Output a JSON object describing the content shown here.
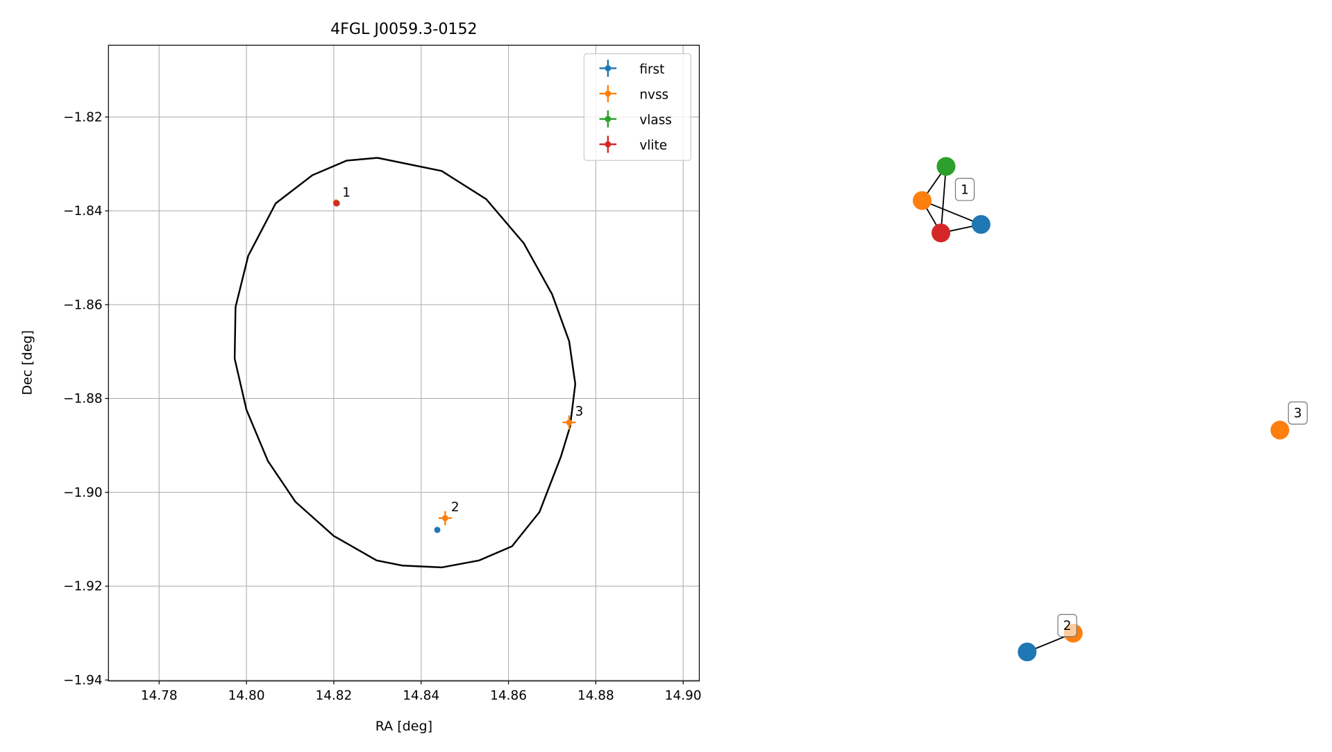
{
  "chart_data": [
    {
      "type": "scatter",
      "title": "4FGL J0059.3-0152",
      "x_label": "RA [deg]",
      "y_label": "Dec [deg]",
      "xlim": [
        14.7684,
        14.9037
      ],
      "ylim": [
        -1.9402,
        -1.8047
      ],
      "xticks": [
        14.78,
        {
          "value": 14.8,
          "label": "14.80"
        },
        14.82,
        14.84,
        14.86,
        14.88,
        {
          "value": 14.9,
          "label": "14.90"
        }
      ],
      "yticks": [
        {
          "value": -1.82,
          "label": "−1.82"
        },
        {
          "value": -1.84,
          "label": "−1.84"
        },
        {
          "value": -1.86,
          "label": "−1.86"
        },
        {
          "value": -1.88,
          "label": "−1.88"
        },
        {
          "value": -1.9,
          "label": "−1.90"
        },
        {
          "value": -1.92,
          "label": "−1.92"
        },
        {
          "value": -1.94,
          "label": "−1.94"
        }
      ],
      "grid": true,
      "legend": "upper right",
      "series": [
        {
          "name": "first",
          "color": "#1f77b4",
          "x": [
            14.8206,
            14.8437
          ],
          "values": [
            -1.8383,
            -1.908
          ]
        },
        {
          "name": "nvss",
          "color": "#ff7f0e",
          "x": [
            14.8205,
            14.8455,
            14.8739
          ],
          "values": [
            -1.8382,
            -1.9055,
            -1.8851
          ],
          "xerr": [
            0.0003,
            0.0015,
            0.0015
          ],
          "yerr": [
            0.0003,
            0.0015,
            0.0015
          ]
        },
        {
          "name": "vlass",
          "color": "#2ca02c",
          "x": [
            14.8207
          ],
          "values": [
            -1.8384
          ]
        },
        {
          "name": "vlite",
          "color": "#d62728",
          "x": [
            14.8206
          ],
          "values": [
            -1.8384
          ]
        }
      ],
      "contour": {
        "color": "#000000",
        "x": [
          14.83,
          14.8447,
          14.8549,
          14.8635,
          14.87,
          14.8739,
          14.8753,
          14.8741,
          14.872,
          14.8671,
          14.8608,
          14.8533,
          14.8447,
          14.8357,
          14.8298,
          14.82,
          14.8112,
          14.8049,
          14.8,
          14.7973,
          14.7975,
          14.8004,
          14.8067,
          14.8151,
          14.8229,
          14.83
        ],
        "values": [
          -1.8287,
          -1.8315,
          -1.8375,
          -1.8469,
          -1.8578,
          -1.8678,
          -1.8769,
          -1.886,
          -1.8924,
          -1.9042,
          -1.9115,
          -1.9145,
          -1.916,
          -1.9156,
          -1.9145,
          -1.9093,
          -1.902,
          -1.8933,
          -1.8824,
          -1.8715,
          -1.8605,
          -1.8496,
          -1.8384,
          -1.8324,
          -1.8293,
          -1.8287
        ]
      },
      "annotations": [
        {
          "text": "1",
          "x": 14.8206,
          "y": -1.8384
        },
        {
          "text": "2",
          "x": 14.8455,
          "y": -1.9055
        },
        {
          "text": "3",
          "x": 14.8739,
          "y": -1.8851
        }
      ]
    },
    {
      "type": "graph",
      "node_labels": [
        "1",
        "2",
        "3"
      ]
    }
  ]
}
